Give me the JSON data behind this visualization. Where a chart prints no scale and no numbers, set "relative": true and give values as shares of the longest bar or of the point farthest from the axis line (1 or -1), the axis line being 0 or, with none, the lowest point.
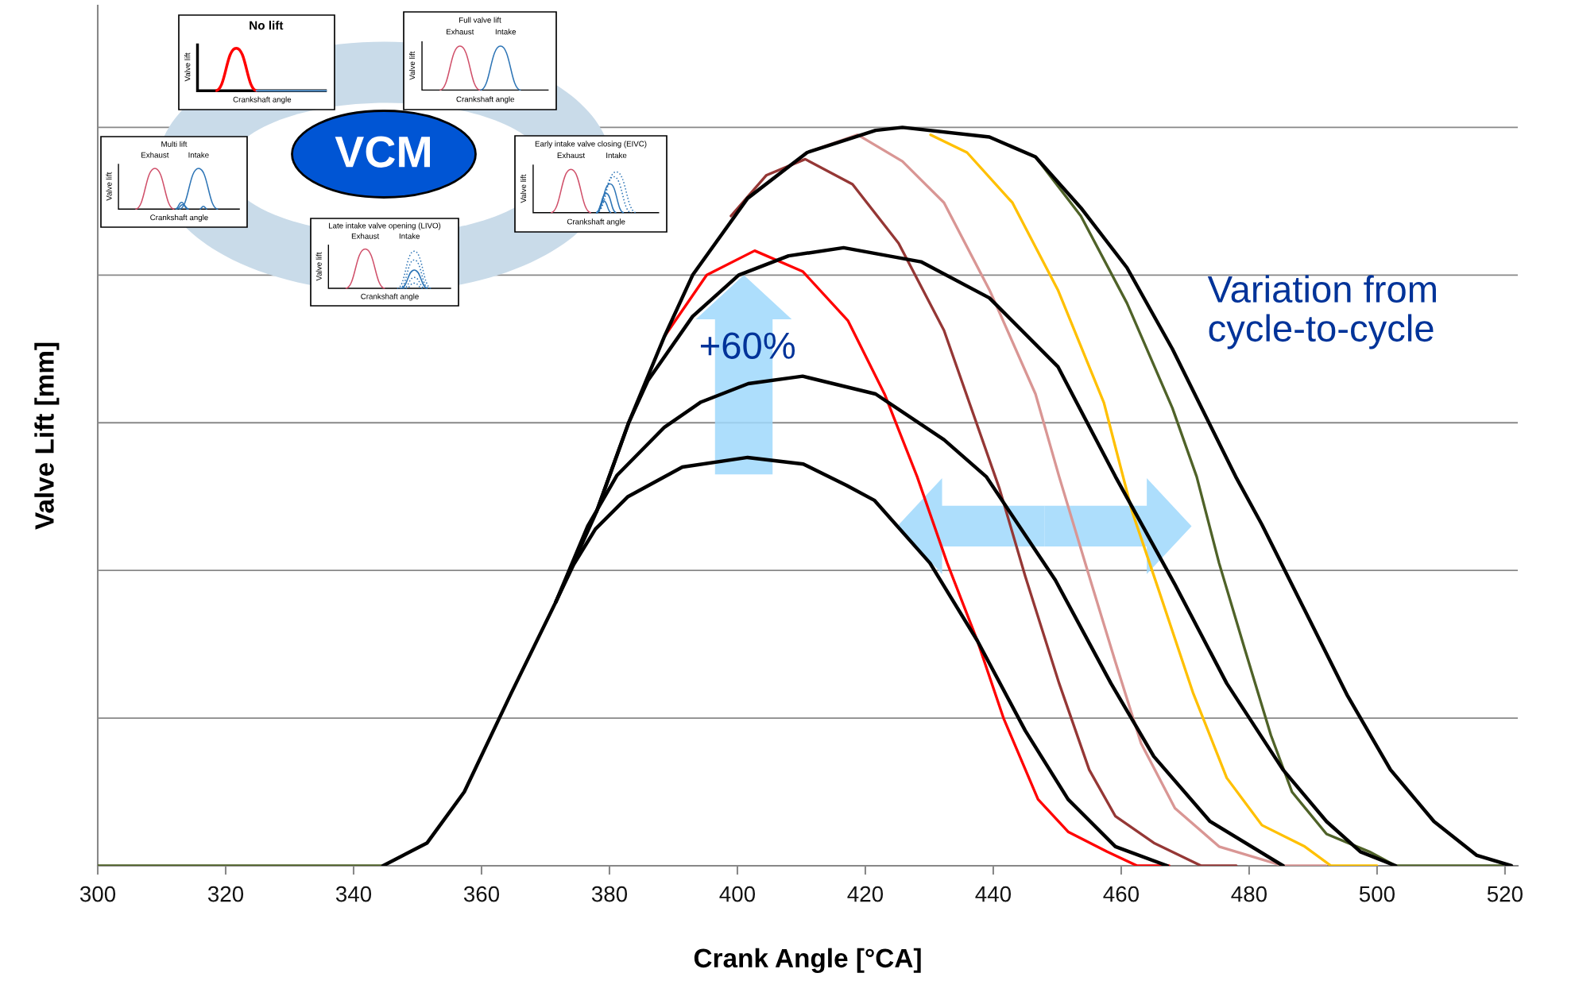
{
  "chart_data": {
    "type": "line",
    "relative": true,
    "xlabel": "Crank Angle [°CA]",
    "ylabel": "Valve Lift [mm]",
    "xlim": [
      300,
      522
    ],
    "xticks": [
      300,
      320,
      340,
      360,
      380,
      400,
      420,
      440,
      460,
      480,
      500,
      520
    ],
    "grid": "y",
    "line_style": "solid",
    "marker": "none",
    "series": [
      {
        "color": "#ff0000",
        "x": [
          388.6,
          395.2,
          402.7,
          410.2,
          417.3,
          423,
          428.1,
          432.8,
          437.5,
          441.6,
          447,
          451.7,
          457.8,
          462.5,
          467.5
        ],
        "values": [
          0.717,
          0.8,
          0.833,
          0.805,
          0.738,
          0.639,
          0.527,
          0.41,
          0.305,
          0.2,
          0.09,
          0.046,
          0.019,
          0,
          0
        ]
      },
      {
        "color": "#953735",
        "x": [
          399,
          404.5,
          410.6,
          418,
          425.2,
          432.3,
          441,
          445,
          450.3,
          455,
          459.1,
          465.1,
          472.5,
          478
        ],
        "values": [
          0.88,
          0.935,
          0.957,
          0.923,
          0.843,
          0.725,
          0.51,
          0.392,
          0.247,
          0.13,
          0.067,
          0.031,
          0,
          0
        ]
      },
      {
        "color": "#d99694",
        "x": [
          410.9,
          418.8,
          425.8,
          432.3,
          439.4,
          446.6,
          450.3,
          455,
          459.1,
          463.1,
          468.4,
          475.3,
          485.3,
          492
        ],
        "values": [
          0.966,
          0.99,
          0.954,
          0.898,
          0.78,
          0.639,
          0.527,
          0.392,
          0.276,
          0.166,
          0.078,
          0.026,
          0,
          0
        ]
      },
      {
        "color": "#ffc000",
        "x": [
          430.2,
          435.9,
          443,
          450.1,
          457.3,
          461.7,
          465.8,
          471.2,
          476.5,
          482,
          488.7,
          492.8,
          500
        ],
        "values": [
          0.99,
          0.966,
          0.898,
          0.78,
          0.627,
          0.48,
          0.375,
          0.235,
          0.119,
          0.055,
          0.026,
          0,
          0
        ]
      },
      {
        "color": "#4f6228",
        "x": [
          300,
          344.6,
          351.5,
          357.3,
          364.6,
          371.6,
          378,
          383,
          388.6,
          393,
          401.6,
          410.9,
          421.6,
          425.8,
          439.4,
          446.6,
          453.7,
          460.9,
          468,
          471.8,
          475.3,
          479.3,
          483.4,
          486.7,
          492.1,
          498.8,
          502.9,
          519.6
        ],
        "values": [
          0,
          0,
          null,
          null,
          null,
          null,
          null,
          null,
          null,
          null,
          null,
          null,
          null,
          null,
          null,
          0.96,
          0.88,
          0.762,
          0.62,
          0.527,
          0.41,
          0.294,
          0.177,
          0.1,
          0.043,
          0.019,
          0,
          0
        ]
      },
      {
        "color": "#000000",
        "x": [
          344.6,
          351.5,
          357.3,
          364.6,
          371.6,
          374.4,
          377.8,
          382.9,
          391.4,
          401.6,
          410.3,
          417.1,
          421.4,
          430.1,
          437.5,
          445,
          451.7,
          459.1,
          467.2
        ],
        "values": [
          0,
          0.031,
          0.1,
          0.233,
          0.357,
          0.408,
          0.456,
          0.5,
          0.54,
          0.553,
          0.544,
          0.515,
          0.495,
          0.41,
          0.305,
          0.183,
          0.09,
          0.026,
          0
        ]
      },
      {
        "color": "#000000",
        "x": [
          371.6,
          376.6,
          381.2,
          388.6,
          394.3,
          401.7,
          410.2,
          421.6,
          432.3,
          438.9,
          449.7,
          458.4,
          465.1,
          473.9,
          485.3
        ],
        "values": [
          0.357,
          0.46,
          0.529,
          0.594,
          0.628,
          0.653,
          0.663,
          0.639,
          0.577,
          0.527,
          0.387,
          0.247,
          0.148,
          0.06,
          0
        ]
      },
      {
        "color": "#000000",
        "x": [
          378,
          383,
          386,
          393,
          400.2,
          408,
          416.6,
          428.7,
          439.4,
          450.1,
          459.1,
          468.4,
          476.5,
          485.3,
          492.1,
          497.4,
          502.9
        ],
        "values": [
          0.48,
          0.6,
          0.657,
          0.744,
          0.8,
          0.826,
          0.837,
          0.818,
          0.769,
          0.676,
          0.527,
          0.381,
          0.247,
          0.13,
          0.06,
          0.019,
          0
        ]
      },
      {
        "color": "#000000",
        "x": [
          371.6,
          378,
          383,
          388.6,
          393,
          401.6,
          410.9,
          421.6,
          425.8,
          439.4,
          446.6,
          453.7,
          460.9,
          468,
          477.9,
          482,
          488.7,
          495.4,
          502.1,
          508.9,
          515.6,
          521
        ],
        "values": [
          0.357,
          0.48,
          0.6,
          0.717,
          0.8,
          0.904,
          0.966,
          0.996,
          1.0,
          0.987,
          0.96,
          0.891,
          0.81,
          0.7,
          0.527,
          0.462,
          0.346,
          0.23,
          0.13,
          0.06,
          0.014,
          0
        ]
      }
    ],
    "annotations": [
      "+60%",
      "Variation from\ncycle-to-cycle",
      "VCM",
      "No lift",
      "Valve lift",
      "Crankshaft angle",
      "Full valve lift",
      "Exhaust",
      "Intake",
      "Valve lift",
      "Crankshaft angle",
      "Multi lift",
      "Exhaust",
      "Intake",
      "Valve lift",
      "Crankshaft angle",
      "Early intake valve closing (EIVC)",
      "Exhaust",
      "Intake",
      "Valve lift",
      "Crankshaft angle",
      "Late intake valve opening (LIVO)",
      "Exhaust",
      "Intake",
      "Valve lift",
      "Crankshaft angle"
    ]
  }
}
